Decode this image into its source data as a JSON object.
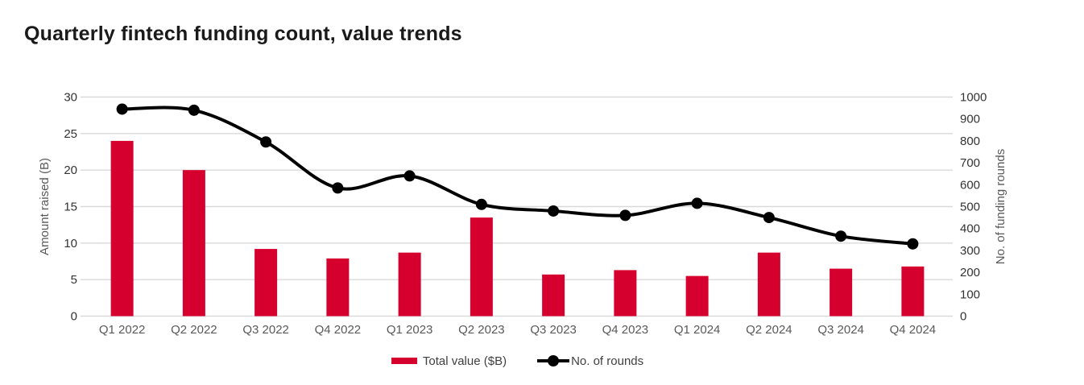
{
  "title": "Quarterly fintech funding count, value trends",
  "chart_data": {
    "type": "bar",
    "subtype": "combo-bar-line",
    "title": "Quarterly fintech funding count, value trends",
    "categories": [
      "Q1 2022",
      "Q2 2022",
      "Q3 2022",
      "Q4 2022",
      "Q1 2023",
      "Q2 2023",
      "Q3 2023",
      "Q4 2023",
      "Q1 2024",
      "Q2 2024",
      "Q3 2024",
      "Q4 2024"
    ],
    "series": [
      {
        "name": "Total value ($B)",
        "type": "bar",
        "axis": "left",
        "color": "#d6002f",
        "values": [
          24,
          20,
          9.2,
          7.9,
          8.7,
          13.5,
          5.7,
          6.3,
          5.5,
          8.7,
          6.5,
          6.8
        ]
      },
      {
        "name": "No. of rounds",
        "type": "line",
        "axis": "right",
        "color": "#000000",
        "values": [
          945,
          940,
          795,
          585,
          640,
          510,
          480,
          460,
          515,
          450,
          365,
          330
        ]
      }
    ],
    "left_axis": {
      "label": "Amount raised (B)",
      "min": 0,
      "max": 30,
      "ticks": [
        0,
        5,
        10,
        15,
        20,
        25,
        30
      ]
    },
    "right_axis": {
      "label": "No. of funding rounds",
      "min": 0,
      "max": 1000,
      "ticks": [
        0,
        100,
        200,
        300,
        400,
        500,
        600,
        700,
        800,
        900,
        1000
      ]
    },
    "grid": true,
    "legend_position": "bottom-center"
  },
  "colors": {
    "bar": "#d6002f",
    "line": "#000000",
    "grid": "#d9d9d9",
    "tick_text": "#333333",
    "axis_title_text": "#595959",
    "category_text": "#595959",
    "legend_text": "#404040",
    "title_text": "#1a1a1a",
    "background": "#ffffff"
  }
}
